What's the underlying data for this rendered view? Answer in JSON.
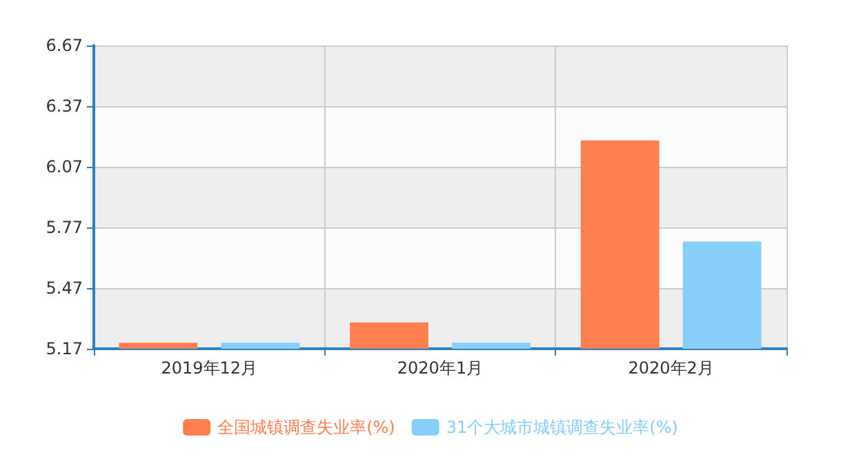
{
  "chart_data": {
    "type": "bar",
    "categories": [
      "2019年12月",
      "2020年1月",
      "2020年2月"
    ],
    "series": [
      {
        "name": "全国城镇调查失业率(%)",
        "color": "#ff7f50",
        "values": [
          5.2,
          5.3,
          6.2
        ]
      },
      {
        "name": "31个大城市城镇调查失业率(%)",
        "color": "#87cefa",
        "values": [
          5.2,
          5.2,
          5.7
        ]
      }
    ],
    "ylim": [
      5.17,
      6.67
    ],
    "yticks": [
      5.17,
      5.47,
      5.77,
      6.07,
      6.37,
      6.67
    ],
    "grid": true,
    "legend": "bottom"
  }
}
